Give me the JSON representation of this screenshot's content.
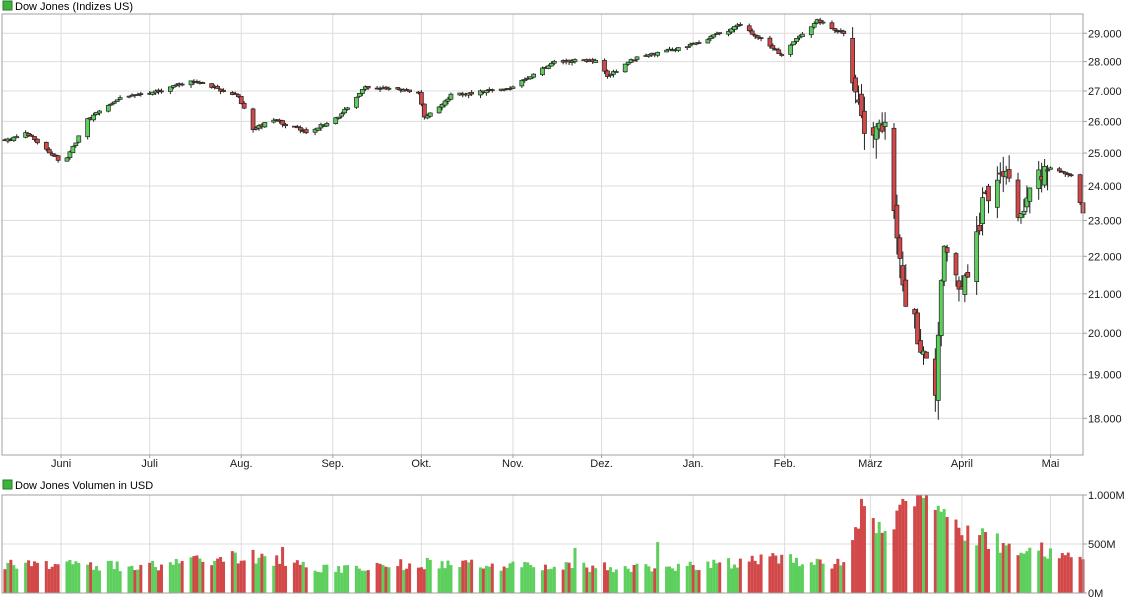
{
  "colors": {
    "up": "#5ccf5c",
    "down": "#d24848",
    "grid": "#dcdcdc",
    "frame": "#a0a0a0",
    "legend": "#3cb43c",
    "wick": "#202020"
  },
  "chart_data": [
    {
      "type": "candlestick",
      "legend_label": "Dow Jones (Indizes US)",
      "y_ticks": [
        "29.000",
        "28.000",
        "27.000",
        "26.000",
        "25.000",
        "24.000",
        "23.000",
        "22.000",
        "21.000",
        "20.000",
        "19.000",
        "18.000"
      ],
      "y_tick_values": [
        29000,
        28000,
        27000,
        26000,
        25000,
        24000,
        23000,
        22000,
        21000,
        20000,
        19000,
        18000
      ],
      "ylim": [
        17200,
        29700
      ],
      "y_scale": "log",
      "x_ticks": [
        "Juni",
        "Juli",
        "Aug.",
        "Sep.",
        "Okt.",
        "Nov.",
        "Dez.",
        "Jan.",
        "Feb.",
        "März",
        "April",
        "Mai"
      ],
      "x_tick_dates": [
        "2019-06-01",
        "2019-07-01",
        "2019-08-01",
        "2019-09-01",
        "2019-10-01",
        "2019-11-01",
        "2019-12-01",
        "2020-01-01",
        "2020-02-01",
        "2020-03-01",
        "2020-04-01",
        "2020-05-01"
      ],
      "x_range": [
        "2019-05-12",
        "2020-05-12"
      ],
      "close_anchors": [
        [
          "2019-05-13",
          25350
        ],
        [
          "2019-05-20",
          25650
        ],
        [
          "2019-05-31",
          24800
        ],
        [
          "2019-06-03",
          24820
        ],
        [
          "2019-06-10",
          26050
        ],
        [
          "2019-06-20",
          26750
        ],
        [
          "2019-07-03",
          26950
        ],
        [
          "2019-07-15",
          27350
        ],
        [
          "2019-07-31",
          26850
        ],
        [
          "2019-08-05",
          25750
        ],
        [
          "2019-08-12",
          26050
        ],
        [
          "2019-08-23",
          25650
        ],
        [
          "2019-09-03",
          26120
        ],
        [
          "2019-09-12",
          27150
        ],
        [
          "2019-09-30",
          26950
        ],
        [
          "2019-10-02",
          26100
        ],
        [
          "2019-10-11",
          26850
        ],
        [
          "2019-10-31",
          27100
        ],
        [
          "2019-11-15",
          28000
        ],
        [
          "2019-11-29",
          28050
        ],
        [
          "2019-12-03",
          27500
        ],
        [
          "2019-12-13",
          28150
        ],
        [
          "2019-12-31",
          28550
        ],
        [
          "2020-01-17",
          29300
        ],
        [
          "2020-01-31",
          28250
        ],
        [
          "2020-02-12",
          29500
        ],
        [
          "2020-02-21",
          28990
        ],
        [
          "2020-02-28",
          25400
        ],
        [
          "2020-03-06",
          25900
        ],
        [
          "2020-03-12",
          21200
        ],
        [
          "2020-03-16",
          20200
        ],
        [
          "2020-03-23",
          18590
        ],
        [
          "2020-03-26",
          22500
        ],
        [
          "2020-04-01",
          20950
        ],
        [
          "2020-04-09",
          23700
        ],
        [
          "2020-04-17",
          24250
        ],
        [
          "2020-04-21",
          23000
        ],
        [
          "2020-04-29",
          24650
        ],
        [
          "2020-05-08",
          24300
        ],
        [
          "2020-05-12",
          23250
        ]
      ]
    },
    {
      "type": "bar",
      "legend_label": "Dow Jones Volumen in USD",
      "y_ticks": [
        "1.000M",
        "500M",
        "0M"
      ],
      "y_tick_values": [
        1000,
        500,
        0
      ],
      "ylim": [
        0,
        1000
      ],
      "unit": "M",
      "volume_anchors": [
        [
          "2019-05-13",
          300
        ],
        [
          "2019-06-30",
          270
        ],
        [
          "2019-08-05",
          380
        ],
        [
          "2019-08-30",
          250
        ],
        [
          "2019-10-02",
          300
        ],
        [
          "2019-11-29",
          260
        ],
        [
          "2019-12-31",
          270
        ],
        [
          "2020-01-31",
          360
        ],
        [
          "2020-02-21",
          300
        ],
        [
          "2020-02-24",
          470
        ],
        [
          "2020-02-28",
          850
        ],
        [
          "2020-03-06",
          650
        ],
        [
          "2020-03-12",
          900
        ],
        [
          "2020-03-20",
          880
        ],
        [
          "2020-03-31",
          620
        ],
        [
          "2020-04-15",
          500
        ],
        [
          "2020-04-30",
          420
        ],
        [
          "2020-05-12",
          390
        ]
      ],
      "volume_spikes": [
        [
          "2019-08-05",
          440
        ],
        [
          "2019-08-15",
          470
        ],
        [
          "2019-11-22",
          460
        ],
        [
          "2019-12-20",
          520
        ],
        [
          "2020-01-31",
          390
        ],
        [
          "2020-02-24",
          540
        ],
        [
          "2020-02-27",
          960
        ],
        [
          "2020-03-12",
          960
        ],
        [
          "2020-03-20",
          1020
        ]
      ]
    }
  ]
}
